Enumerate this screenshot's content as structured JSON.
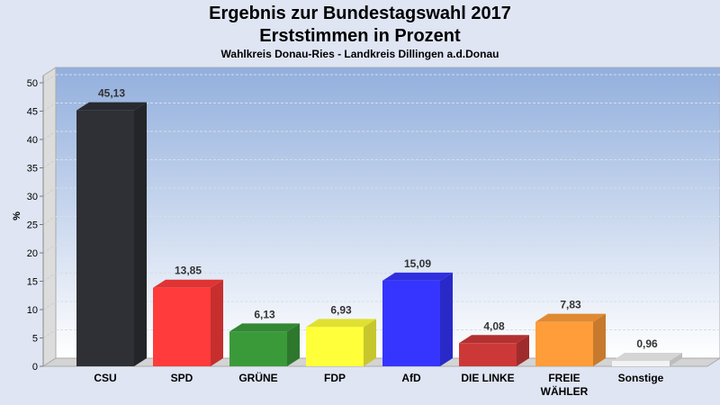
{
  "chart_data": {
    "type": "bar",
    "title": "Ergebnis zur Bundestagswahl 2017",
    "subtitle": "Erststimmen in Prozent",
    "subtitle2": "Wahlkreis Donau-Ries - Landkreis Dillingen a.d.Donau",
    "xlabel": "",
    "ylabel": "%",
    "ylim": [
      0,
      50
    ],
    "yticks": [
      0,
      5,
      10,
      15,
      20,
      25,
      30,
      35,
      40,
      45,
      50
    ],
    "grid": true,
    "categories": [
      "CSU",
      "SPD",
      "GRÜNE",
      "FDP",
      "AfD",
      "DIE LINKE",
      "FREIE WÄHLER",
      "Sonstige"
    ],
    "category_lines": [
      [
        "CSU"
      ],
      [
        "SPD"
      ],
      [
        "GRÜNE"
      ],
      [
        "FDP"
      ],
      [
        "AfD"
      ],
      [
        "DIE LINKE"
      ],
      [
        "FREIE",
        "WÄHLER"
      ],
      [
        "Sonstige"
      ]
    ],
    "values": [
      45.13,
      13.85,
      6.13,
      6.93,
      15.09,
      4.08,
      7.83,
      0.96
    ],
    "value_labels": [
      "45,13",
      "13,85",
      "6,13",
      "6,93",
      "15,09",
      "4,08",
      "7,83",
      "0,96"
    ],
    "colors": [
      "#2e3035",
      "#ff3b3b",
      "#3a9a3a",
      "#ffff3a",
      "#3535ff",
      "#cc3838",
      "#ff9d3a",
      "#f2f2f2"
    ]
  }
}
